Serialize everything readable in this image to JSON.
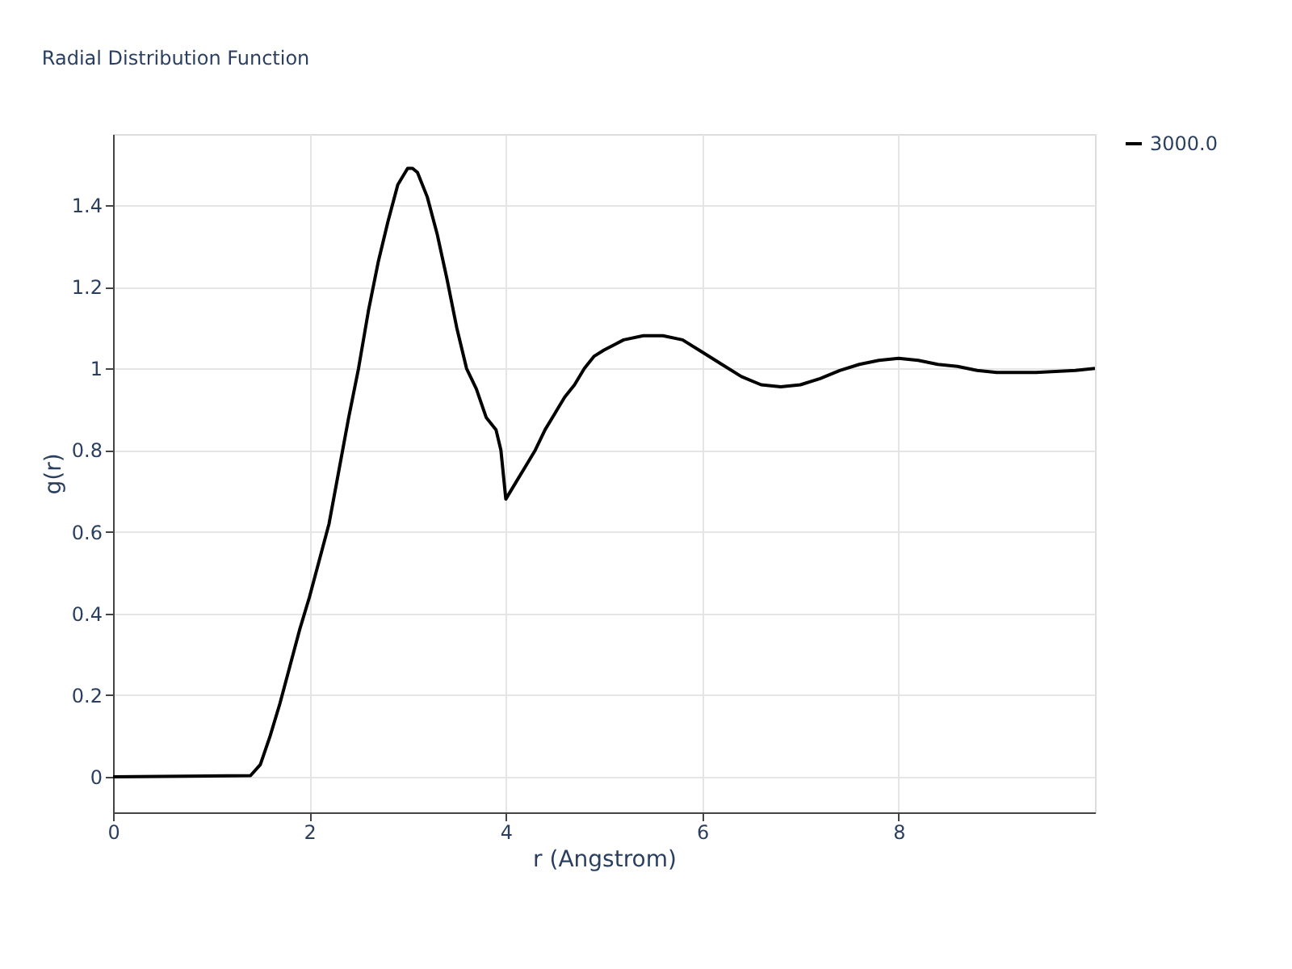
{
  "chart_data": {
    "type": "line",
    "title": "Radial Distribution Function",
    "xlabel": "r (Angstrom)",
    "ylabel": "g(r)",
    "xlim": [
      0,
      10
    ],
    "ylim": [
      -0.087,
      1.574
    ],
    "xticks": [
      0,
      2,
      4,
      6,
      8
    ],
    "yticks": [
      0,
      0.2,
      0.4,
      0.6,
      0.8,
      1,
      1.2,
      1.4
    ],
    "grid": true,
    "legend": "top right",
    "marker": "none",
    "line_style": "solid",
    "series": [
      {
        "name": "3000.0",
        "color": "#000000",
        "x": [
          0,
          1.4,
          1.5,
          1.6,
          1.7,
          1.8,
          1.9,
          2.0,
          2.1,
          2.2,
          2.3,
          2.4,
          2.5,
          2.6,
          2.7,
          2.8,
          2.9,
          3.0,
          3.05,
          3.1,
          3.2,
          3.3,
          3.4,
          3.5,
          3.6,
          3.7,
          3.8,
          3.9,
          3.95,
          4.0,
          4.1,
          4.2,
          4.3,
          4.4,
          4.5,
          4.6,
          4.7,
          4.8,
          4.9,
          5.0,
          5.2,
          5.4,
          5.6,
          5.8,
          6.0,
          6.2,
          6.4,
          6.6,
          6.8,
          7.0,
          7.2,
          7.4,
          7.6,
          7.8,
          8.0,
          8.2,
          8.4,
          8.6,
          8.8,
          9.0,
          9.4,
          9.8,
          10.0
        ],
        "values": [
          0,
          0.003,
          0.03,
          0.1,
          0.18,
          0.27,
          0.36,
          0.44,
          0.53,
          0.62,
          0.75,
          0.88,
          1.0,
          1.14,
          1.26,
          1.36,
          1.45,
          1.49,
          1.49,
          1.48,
          1.42,
          1.33,
          1.22,
          1.1,
          1.0,
          0.95,
          0.88,
          0.85,
          0.8,
          0.68,
          0.72,
          0.76,
          0.8,
          0.85,
          0.89,
          0.93,
          0.96,
          1.0,
          1.03,
          1.045,
          1.07,
          1.08,
          1.08,
          1.07,
          1.04,
          1.01,
          0.98,
          0.96,
          0.955,
          0.96,
          0.975,
          0.995,
          1.01,
          1.02,
          1.025,
          1.02,
          1.01,
          1.005,
          0.995,
          0.99,
          0.99,
          0.995,
          1.0
        ]
      }
    ]
  }
}
